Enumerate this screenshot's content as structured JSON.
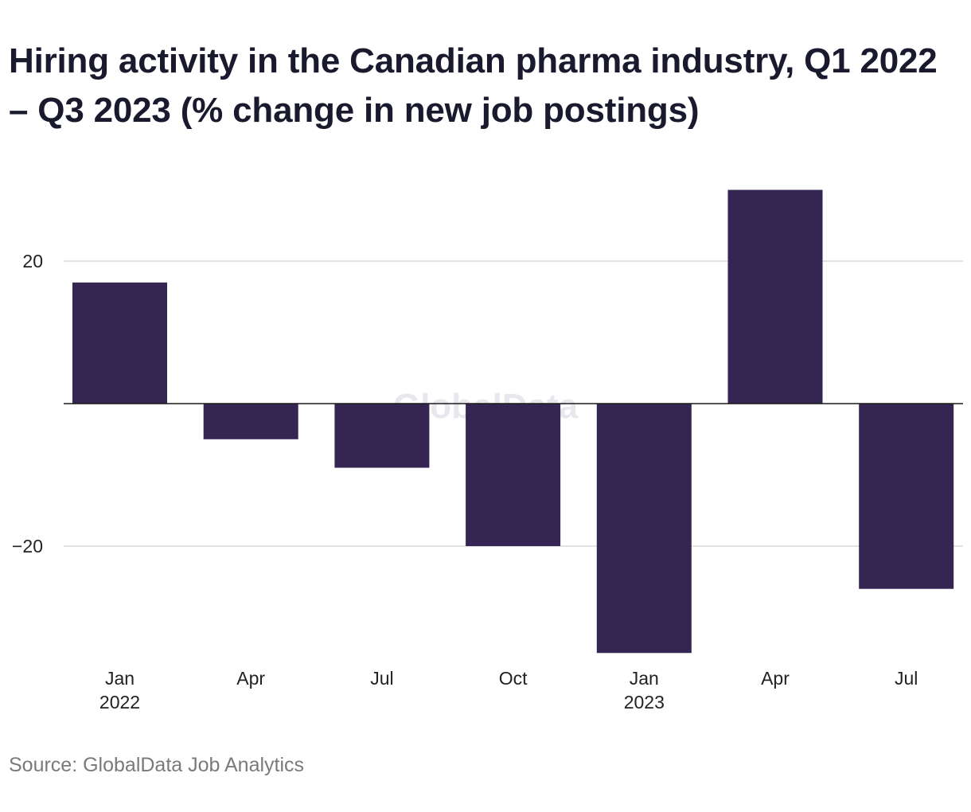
{
  "title": "Hiring activity in the Canadian pharma industry, Q1 2022 – Q3 2023 (% change in new job postings)",
  "source": "Source: GlobalData Job Analytics",
  "watermark": "GlobalData",
  "colors": {
    "bar": "#352552",
    "grid": "#d9d9d9",
    "zero_line": "#1a1a1a",
    "title": "#1a1a2e",
    "source": "#7a7a7a"
  },
  "chart_data": {
    "type": "bar",
    "title": "Hiring activity in the Canadian pharma industry, Q1 2022 – Q3 2023 (% change in new job postings)",
    "categories": [
      "Jan 2022",
      "Apr 2022",
      "Jul 2022",
      "Oct 2022",
      "Jan 2023",
      "Apr 2023",
      "Jul 2023"
    ],
    "x_tick_labels": [
      {
        "line1": "Jan",
        "line2": "2022"
      },
      {
        "line1": "Apr",
        "line2": ""
      },
      {
        "line1": "Jul",
        "line2": ""
      },
      {
        "line1": "Oct",
        "line2": ""
      },
      {
        "line1": "Jan",
        "line2": "2023"
      },
      {
        "line1": "Apr",
        "line2": ""
      },
      {
        "line1": "Jul",
        "line2": ""
      }
    ],
    "values": [
      17,
      -5,
      -9,
      -20,
      -35,
      30,
      -26
    ],
    "y_ticks": [
      20,
      -20
    ],
    "y_tick_labels": [
      "20",
      "−20"
    ],
    "ylim": [
      -35,
      30
    ],
    "xlabel": "",
    "ylabel": "",
    "grid": true,
    "legend": false
  }
}
